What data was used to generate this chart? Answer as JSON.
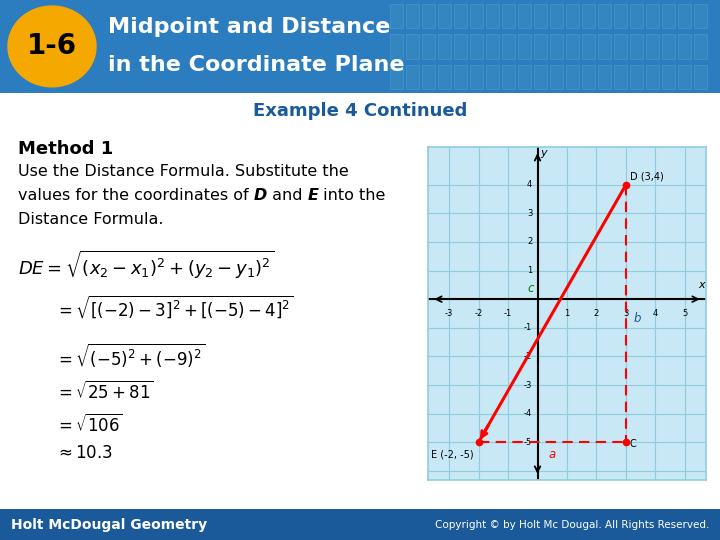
{
  "title_number": "1-6",
  "title_line1": "Midpoint and Distance",
  "title_line2": "in the Coordinate Plane",
  "subtitle": "Example 4 Continued",
  "header_bg_color": "#2b7dbf",
  "badge_color": "#f5a800",
  "badge_text_color": "#000000",
  "body_bg_color": "#ffffff",
  "method_title": "Method 1",
  "body_text1": "Use the Distance Formula. Substitute the",
  "body_text2a": "values for the coordinates of ",
  "body_text2b": "D",
  "body_text2c": " and ",
  "body_text2d": "E",
  "body_text2e": " into the",
  "body_text3": "Distance Formula.",
  "formula1": "DE = \\sqrt{(x_2 - x_1)^2 + (y_2 - y_1)^2}",
  "formula2": "= \\sqrt{[(-2) - 3]^2 + [(-5) - 4]^2}",
  "formula3": "= \\sqrt{(-5)^2 + (-9)^2}",
  "formula4": "= \\sqrt{25 + 81}",
  "formula5": "= \\sqrt{106}",
  "formula6": "\\approx 10.3",
  "plot_D": [
    3,
    4
  ],
  "plot_E": [
    -2,
    -5
  ],
  "plot_C": [
    3,
    -5
  ],
  "footer_bg_color": "#1a5a9a",
  "footer_text": "Holt McDougal Geometry",
  "copyright_text": "Copyright © by Holt Mc Dougal. All Rights Reserved.",
  "tile_color": "#3a8fc0",
  "tile_edge": "#5aaad0",
  "grid_color": "#90cce0",
  "plot_bg": "#c8e8f5"
}
